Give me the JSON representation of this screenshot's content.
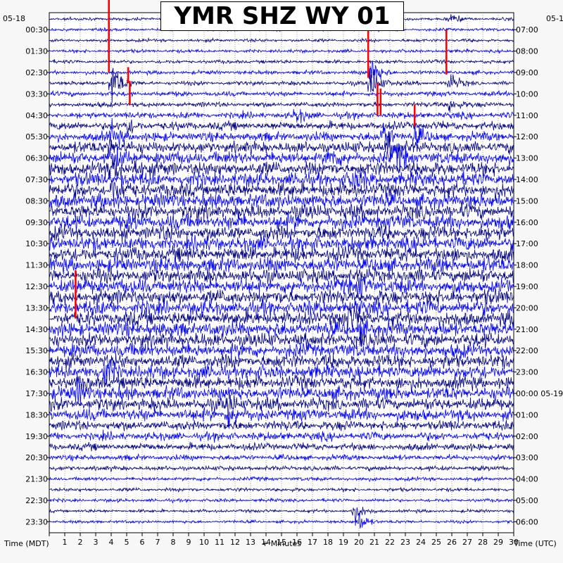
{
  "chart_data": {
    "type": "helicorder",
    "title": "YMR SHZ WY 01",
    "left_date": "05-18",
    "right_date_top": "05-1",
    "right_date_mid": "05-19",
    "xlabel": "+ Minutes",
    "left_axis_label": "Time (MDT)",
    "right_axis_label": "Time (UTC)",
    "x_ticks": [
      1,
      2,
      3,
      4,
      5,
      6,
      7,
      8,
      9,
      10,
      11,
      12,
      13,
      14,
      15,
      16,
      17,
      18,
      19,
      20,
      21,
      22,
      23,
      24,
      25,
      26,
      27,
      28,
      29,
      30
    ],
    "xlim": [
      0,
      30
    ],
    "lines_per_hour": 2,
    "left_labels": [
      "00:30",
      "01:30",
      "02:30",
      "03:30",
      "04:30",
      "05:30",
      "06:30",
      "07:30",
      "08:30",
      "09:30",
      "10:30",
      "11:30",
      "12:30",
      "13:30",
      "14:30",
      "15:30",
      "16:30",
      "17:30",
      "18:30",
      "19:30",
      "20:30",
      "21:30",
      "22:30",
      "23:30"
    ],
    "right_labels": [
      "07:00",
      "08:00",
      "09:00",
      "10:00",
      "11:00",
      "12:00",
      "13:00",
      "14:00",
      "15:00",
      "16:00",
      "17:00",
      "18:00",
      "19:00",
      "20:00",
      "21:00",
      "22:00",
      "23:00",
      "00:00 05-19",
      "01:00",
      "02:00",
      "03:00",
      "04:00",
      "05:00",
      "06:00"
    ],
    "trace_colors": [
      "#000080",
      "#0000ff"
    ],
    "clip_color": "#ff0000",
    "noise_level_per_line": [
      0.08,
      0.08,
      0.08,
      0.09,
      0.1,
      0.1,
      0.12,
      0.14,
      0.14,
      0.16,
      0.18,
      0.2,
      0.22,
      0.28,
      0.32,
      0.38,
      0.45,
      0.5,
      0.6,
      0.7,
      0.75,
      0.8,
      0.85,
      0.85,
      0.9,
      0.9,
      0.9,
      0.9,
      0.9,
      0.9,
      0.9,
      0.9,
      0.9,
      0.9,
      0.9,
      0.9,
      0.9,
      0.9,
      0.9,
      0.9,
      0.9,
      0.9,
      0.9,
      0.9,
      0.9,
      0.9,
      0.9,
      0.88,
      0.85,
      0.85,
      0.85,
      0.85,
      0.85,
      0.82,
      0.8,
      0.78,
      0.75,
      0.7,
      0.65,
      0.55,
      0.5,
      0.45,
      0.38,
      0.3,
      0.25,
      0.2,
      0.16,
      0.14,
      0.12,
      0.12,
      0.1,
      0.09,
      0.08,
      0.08
    ],
    "events": [
      {
        "line": 0,
        "minute": 25.8,
        "amp": 0.6
      },
      {
        "line": 5,
        "minute": 20.8,
        "amp": 2.0
      },
      {
        "line": 6,
        "minute": 4.0,
        "amp": 3.0
      },
      {
        "line": 6,
        "minute": 20.7,
        "amp": 2.5
      },
      {
        "line": 6,
        "minute": 25.8,
        "amp": 1.2
      },
      {
        "line": 8,
        "minute": 25.8,
        "amp": 1.0
      },
      {
        "line": 9,
        "minute": 15.9,
        "amp": 0.9
      },
      {
        "line": 10,
        "minute": 5.0,
        "amp": 1.0
      },
      {
        "line": 11,
        "minute": 4.0,
        "amp": 1.5
      },
      {
        "line": 11,
        "minute": 21.5,
        "amp": 1.6
      },
      {
        "line": 11,
        "minute": 23.6,
        "amp": 1.0
      },
      {
        "line": 12,
        "minute": 3.8,
        "amp": 1.2
      },
      {
        "line": 12,
        "minute": 21.8,
        "amp": 1.5
      },
      {
        "line": 13,
        "minute": 4.0,
        "amp": 1.4
      },
      {
        "line": 13,
        "minute": 22.3,
        "amp": 1.8
      },
      {
        "line": 13,
        "minute": 18.0,
        "amp": 1.0
      },
      {
        "line": 14,
        "minute": 4.0,
        "amp": 1.5
      },
      {
        "line": 14,
        "minute": 5.5,
        "amp": 1.0
      },
      {
        "line": 15,
        "minute": 19.5,
        "amp": 1.2
      },
      {
        "line": 16,
        "minute": 4.0,
        "amp": 1.4
      },
      {
        "line": 25,
        "minute": 20.0,
        "amp": 1.2
      },
      {
        "line": 28,
        "minute": 19.2,
        "amp": 1.6
      },
      {
        "line": 29,
        "minute": 20.0,
        "amp": 1.3
      },
      {
        "line": 33,
        "minute": 3.5,
        "amp": 1.4
      },
      {
        "line": 35,
        "minute": 1.8,
        "amp": 1.4
      },
      {
        "line": 36,
        "minute": 11.5,
        "amp": 1.3
      },
      {
        "line": 37,
        "minute": 11.5,
        "amp": 1.3
      },
      {
        "line": 46,
        "minute": 19.6,
        "amp": 1.4
      },
      {
        "line": 47,
        "minute": 20.0,
        "amp": 1.2
      },
      {
        "line": 56,
        "minute": 4.5,
        "amp": 0.9
      },
      {
        "line": 68,
        "minute": 3.2,
        "amp": 0.5
      }
    ],
    "clipped": [
      {
        "line": 4,
        "minute": 3.85,
        "from": -1,
        "to": 7
      },
      {
        "line": 4,
        "minute": 20.6,
        "from": -1.5,
        "to": 3.5
      },
      {
        "line": 4,
        "minute": 25.65,
        "from": -1.2,
        "to": 3.0
      },
      {
        "line": 6,
        "minute": 5.1,
        "from": 0,
        "to": 1.5
      },
      {
        "line": 7,
        "minute": 5.2,
        "from": -1,
        "to": 1.2
      },
      {
        "line": 8,
        "minute": 21.2,
        "from": -1,
        "to": 2.0
      },
      {
        "line": 9,
        "minute": 21.4,
        "from": 0,
        "to": 2.5
      },
      {
        "line": 10,
        "minute": 23.6,
        "from": 0,
        "to": 2.0
      },
      {
        "line": 27,
        "minute": 1.7,
        "from": -1,
        "to": 3.5
      }
    ]
  }
}
